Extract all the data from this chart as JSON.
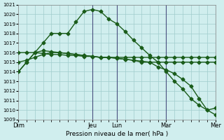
{
  "background_color": "#d0eeee",
  "grid_color": "#a0cccc",
  "line_color": "#1a5c1a",
  "marker_color": "#1a5c1a",
  "xlabel": "Pression niveau de la mer( hPa )",
  "ylim": [
    1009,
    1021
  ],
  "yticks": [
    1009,
    1010,
    1011,
    1012,
    1013,
    1014,
    1015,
    1016,
    1017,
    1018,
    1019,
    1020
  ],
  "day_labels": [
    "Dim",
    "Jeu",
    "Lun",
    "Mar",
    "Mer"
  ],
  "vline_positions": [
    9,
    12,
    18,
    24
  ],
  "s1_x": [
    0,
    1,
    2,
    3,
    4,
    5,
    6,
    7,
    8,
    9,
    10,
    11,
    12,
    13,
    14,
    15,
    16,
    17,
    18,
    19,
    20,
    21,
    22,
    23,
    24
  ],
  "s1_y": [
    1014.0,
    1015.0,
    1016.0,
    1017.0,
    1018.0,
    1018.0,
    1018.0,
    1019.2,
    1020.3,
    1020.5,
    1020.3,
    1019.5,
    1019.0,
    1018.2,
    1017.3,
    1016.5,
    1015.7,
    1015.0,
    1014.0,
    1013.0,
    1012.2,
    1011.2,
    1010.5,
    1010.0,
    1010.2
  ],
  "s2_x": [
    0,
    1,
    2,
    3,
    4,
    5,
    6,
    7,
    8,
    9,
    10,
    11,
    12,
    13,
    14,
    15,
    16,
    17,
    18,
    19,
    20,
    21,
    22,
    23,
    24
  ],
  "s2_y": [
    1014.0,
    1015.0,
    1016.0,
    1016.2,
    1016.1,
    1016.0,
    1015.9,
    1015.8,
    1015.7,
    1015.6,
    1015.5,
    1015.5,
    1015.4,
    1015.3,
    1015.2,
    1015.1,
    1015.0,
    1014.5,
    1014.2,
    1013.8,
    1013.2,
    1012.5,
    1011.2,
    1010.0,
    1009.5
  ],
  "s3_x": [
    0,
    1,
    2,
    3,
    4,
    5,
    6,
    7,
    8,
    9,
    10,
    11,
    12,
    13,
    14,
    15,
    16,
    17,
    18,
    19,
    20,
    21,
    22,
    23,
    24
  ],
  "s3_y": [
    1016.0,
    1016.0,
    1016.0,
    1015.9,
    1015.8,
    1015.8,
    1015.7,
    1015.7,
    1015.6,
    1015.6,
    1015.5,
    1015.5,
    1015.5,
    1015.5,
    1015.5,
    1015.5,
    1015.5,
    1015.5,
    1015.5,
    1015.5,
    1015.5,
    1015.5,
    1015.5,
    1015.5,
    1015.5
  ],
  "s4_x": [
    0,
    1,
    2,
    3,
    4,
    5,
    6,
    7,
    8,
    9,
    10,
    11,
    12,
    13,
    14,
    15,
    16,
    17,
    18,
    19,
    20,
    21,
    22,
    23,
    24
  ],
  "s4_y": [
    1015.0,
    1015.2,
    1015.5,
    1015.8,
    1016.0,
    1016.0,
    1015.9,
    1015.8,
    1015.7,
    1015.6,
    1015.5,
    1015.5,
    1015.4,
    1015.3,
    1015.2,
    1015.0,
    1015.0,
    1015.0,
    1015.0,
    1015.0,
    1015.0,
    1015.0,
    1015.0,
    1015.0,
    1015.0
  ],
  "day_tick_x": [
    0,
    9,
    12,
    18,
    24
  ]
}
